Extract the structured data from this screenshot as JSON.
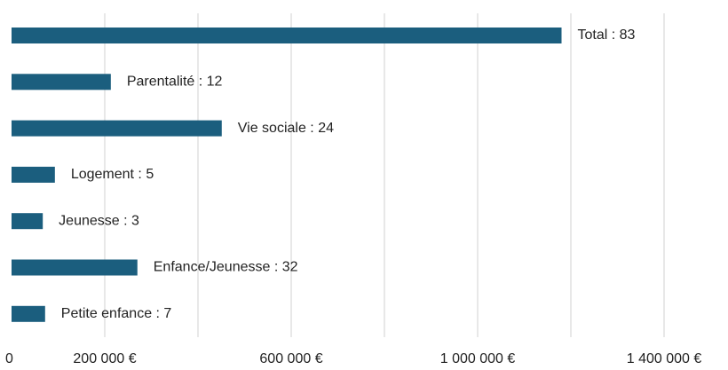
{
  "chart_data": {
    "type": "hbar",
    "categories": [
      "Total : 83",
      "Parentalité : 12",
      "Vie sociale : 24",
      "Logement : 5",
      "Jeunesse : 3",
      "Enfance/Jeunesse : 32",
      "Petite enfance : 7"
    ],
    "values": [
      1180000,
      213000,
      451000,
      93000,
      67000,
      270000,
      72000
    ],
    "color": "#1b5e7e",
    "xlim": [
      0,
      1400000
    ],
    "xticks": [
      0,
      {
        "value": 200000,
        "label": "200 000 €"
      },
      {
        "value": 400000,
        "label": null
      },
      {
        "value": 600000,
        "label": "600 000 €"
      },
      {
        "value": 800000,
        "label": null
      },
      {
        "value": 1000000,
        "label": "1 000 000 €"
      },
      {
        "value": 1200000,
        "label": null
      },
      {
        "value": 1400000,
        "label": "1 400 000 €"
      }
    ],
    "grid": true
  }
}
